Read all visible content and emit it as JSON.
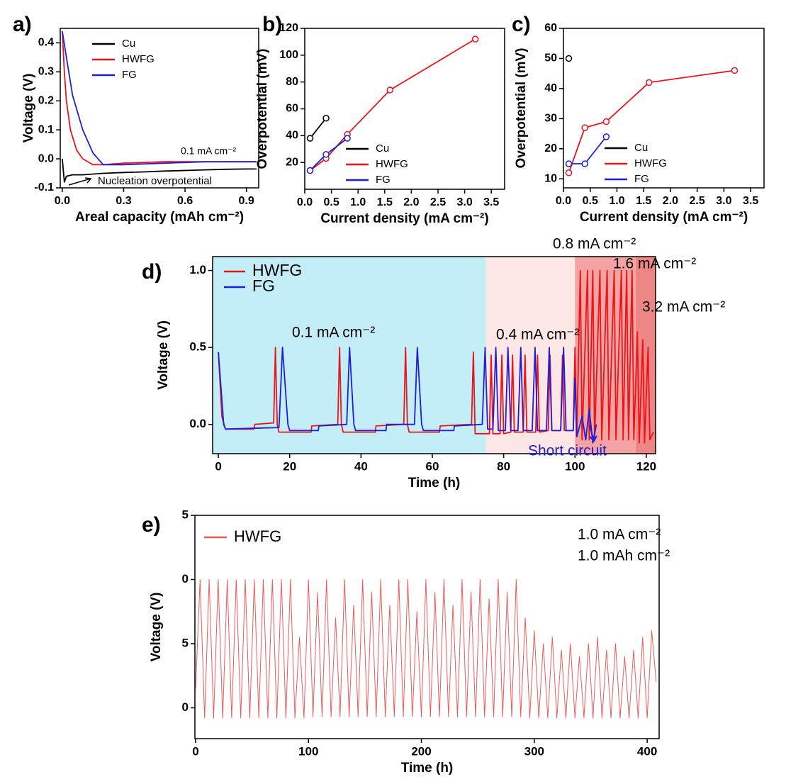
{
  "chart_data": [
    {
      "type": "line",
      "label": "a)",
      "xlabel": "Areal capacity (mAh cm⁻²)",
      "ylabel": "Voltage (V)",
      "xlim": [
        -0.01,
        0.96
      ],
      "ylim": [
        -0.1,
        0.45
      ],
      "xticks": [
        {
          "value": 0,
          "label": "0.0"
        },
        0.3,
        0.6,
        0.9
      ],
      "yticks": [
        -0.1,
        {
          "value": 0,
          "label": "0.0"
        },
        0.1,
        0.2,
        0.3,
        0.4
      ],
      "annotations": [
        "0.1 mA cm⁻²",
        "Nucleation overpotential"
      ],
      "series": [
        {
          "name": "Cu",
          "color": "#000000",
          "x": [
            0,
            0.01,
            0.02,
            0.05,
            0.1,
            0.2,
            0.3,
            0.4,
            0.5,
            0.6,
            0.7,
            0.8,
            0.9,
            0.95
          ],
          "values": [
            0.0,
            -0.08,
            -0.06,
            -0.055,
            -0.055,
            -0.05,
            -0.047,
            -0.045,
            -0.042,
            -0.04,
            -0.038,
            -0.036,
            -0.035,
            -0.035
          ]
        },
        {
          "name": "HWFG",
          "color": "#e8161b",
          "x": [
            0,
            0.01,
            0.02,
            0.04,
            0.07,
            0.1,
            0.15,
            0.2,
            0.3,
            0.5,
            0.7,
            0.95
          ],
          "values": [
            0.44,
            0.3,
            0.2,
            0.1,
            0.03,
            0.0,
            -0.02,
            -0.02,
            -0.015,
            -0.01,
            -0.01,
            -0.01
          ]
        },
        {
          "name": "FG",
          "color": "#1f1fd6",
          "x": [
            0,
            0.02,
            0.05,
            0.1,
            0.15,
            0.2,
            0.3,
            0.5,
            0.7,
            0.95
          ],
          "values": [
            0.44,
            0.35,
            0.22,
            0.1,
            0.02,
            -0.02,
            -0.02,
            -0.015,
            -0.01,
            -0.01
          ]
        }
      ]
    },
    {
      "type": "line",
      "label": "b)",
      "xlabel": "Current density (mA cm⁻²)",
      "ylabel": "Overpotential (mV)",
      "markers": true,
      "xlim": [
        0,
        3.75
      ],
      "ylim": [
        0,
        120
      ],
      "xticks": [
        {
          "value": 0,
          "label": "0.0"
        },
        0.5,
        {
          "value": 1,
          "label": "1.0"
        },
        1.5,
        {
          "value": 2,
          "label": "2.0"
        },
        2.5,
        {
          "value": 3,
          "label": "3.0"
        },
        3.5
      ],
      "yticks": [
        20,
        40,
        60,
        80,
        100,
        120
      ],
      "series": [
        {
          "name": "Cu",
          "color": "#000000",
          "x": [
            0.1,
            0.4
          ],
          "values": [
            38,
            53
          ]
        },
        {
          "name": "HWFG",
          "color": "#e8161b",
          "x": [
            0.1,
            0.4,
            0.8,
            1.6,
            3.2
          ],
          "values": [
            14,
            23,
            41,
            74,
            112
          ]
        },
        {
          "name": "FG",
          "color": "#1f1fd6",
          "x": [
            0.1,
            0.4,
            0.8
          ],
          "values": [
            14,
            26,
            38
          ]
        }
      ]
    },
    {
      "type": "line",
      "label": "c)",
      "xlabel": "Current density (mA cm⁻²)",
      "ylabel": "Overpotential (mV)",
      "markers": true,
      "xlim": [
        0,
        3.75
      ],
      "ylim": [
        7,
        60
      ],
      "xticks": [
        {
          "value": 0,
          "label": "0.0"
        },
        0.5,
        {
          "value": 1,
          "label": "1.0"
        },
        1.5,
        {
          "value": 2,
          "label": "2.0"
        },
        2.5,
        {
          "value": 3,
          "label": "3.0"
        },
        3.5
      ],
      "yticks": [
        10,
        20,
        30,
        40,
        50,
        60
      ],
      "series": [
        {
          "name": "Cu",
          "color": "#000000",
          "x": [
            0.1
          ],
          "values": [
            50
          ]
        },
        {
          "name": "HWFG",
          "color": "#e8161b",
          "x": [
            0.1,
            0.4,
            0.8,
            1.6,
            3.2
          ],
          "values": [
            12,
            27,
            29,
            42,
            46
          ]
        },
        {
          "name": "FG",
          "color": "#1f1fd6",
          "x": [
            0.1,
            0.4,
            0.8
          ],
          "values": [
            15,
            15,
            24
          ]
        }
      ]
    },
    {
      "type": "line",
      "label": "d)",
      "xlabel": "Time (h)",
      "ylabel": "Voltage (V)",
      "xlim": [
        -1.6,
        122.6
      ],
      "ylim": [
        -0.19,
        1.09
      ],
      "xticks": [
        0,
        20,
        40,
        60,
        80,
        100,
        120
      ],
      "yticks": [
        {
          "value": 0,
          "label": "0.0"
        },
        0.5,
        {
          "value": 1,
          "label": "1.0"
        }
      ],
      "regions": [
        {
          "x": [
            -1.6,
            75
          ],
          "color": "#c3eef8"
        },
        {
          "x": [
            75,
            100
          ],
          "color": "#fde6e6"
        },
        {
          "x": [
            100,
            117
          ],
          "color": "#f4a3a3"
        },
        {
          "x": [
            117,
            122.6
          ],
          "color": "#ee8686"
        }
      ],
      "annotations": [
        "0.1 mA cm⁻²",
        "0.4 mA cm⁻²",
        "0.8 mA cm⁻²",
        "1.6 mA cm⁻²",
        "3.2 mA cm⁻²",
        "Short circuit"
      ],
      "series": [
        {
          "name": "HWFG",
          "color": "#e8161b",
          "x": [
            0,
            1,
            2,
            10,
            10.2,
            15.5,
            16,
            16.5,
            17,
            26,
            26.2,
            33.5,
            34,
            34.5,
            35,
            44,
            44.2,
            52,
            52.5,
            53,
            53.5,
            62,
            62.2,
            71,
            71.5,
            72,
            76,
            76.5,
            77,
            79,
            79.5,
            80,
            82,
            82.5,
            83,
            85.5,
            86,
            86.5,
            89,
            89.5,
            90,
            92.5,
            93,
            93.5,
            96,
            96.5,
            97,
            99.5,
            100,
            100.5,
            101.5,
            102,
            103.5,
            104,
            105,
            105.5,
            107,
            107.5,
            109,
            109.5,
            111,
            111.5,
            113,
            113.5,
            114.5,
            115,
            116,
            116.5,
            117.5,
            118,
            119,
            119.5,
            120.5,
            121,
            122
          ],
          "values": [
            0.47,
            0.05,
            -0.03,
            -0.03,
            0.0,
            0.01,
            0.5,
            0.0,
            -0.05,
            -0.05,
            -0.01,
            0.0,
            0.5,
            0.0,
            -0.05,
            -0.05,
            -0.01,
            0.0,
            0.5,
            0.0,
            -0.05,
            -0.05,
            -0.01,
            0.0,
            0.47,
            -0.06,
            -0.06,
            0.45,
            -0.06,
            -0.06,
            0.45,
            -0.06,
            -0.05,
            0.45,
            -0.05,
            -0.05,
            0.45,
            -0.05,
            -0.05,
            0.45,
            -0.05,
            -0.04,
            0.45,
            -0.04,
            -0.04,
            0.45,
            -0.04,
            -0.04,
            0.5,
            -0.08,
            1.0,
            -0.1,
            1.0,
            -0.1,
            1.0,
            -0.1,
            1.0,
            -0.1,
            1.0,
            -0.1,
            1.0,
            -0.1,
            1.0,
            -0.1,
            1.0,
            -0.1,
            1.0,
            -0.1,
            0.6,
            -0.12,
            0.55,
            -0.12,
            0.5,
            -0.1,
            -0.05
          ]
        },
        {
          "name": "FG",
          "color": "#1f1fd6",
          "x": [
            0,
            1.5,
            2,
            17,
            18,
            19.5,
            20,
            28,
            28.2,
            36,
            36.8,
            38,
            38.5,
            47,
            47.2,
            55,
            55.8,
            57,
            57.5,
            66,
            66.2,
            74,
            74.8,
            75.5,
            77,
            77.8,
            78.5,
            80.5,
            81.2,
            82,
            84,
            84.8,
            85.5,
            88,
            88.8,
            89.5,
            92,
            92.8,
            93.5,
            96,
            96.8,
            97.5,
            99.5,
            100,
            100.5,
            102,
            103,
            104,
            105,
            106
          ],
          "values": [
            0.47,
            0.0,
            -0.03,
            -0.02,
            0.5,
            0.0,
            -0.04,
            -0.04,
            -0.01,
            0.0,
            0.5,
            0.0,
            -0.04,
            -0.04,
            0.0,
            0.0,
            0.5,
            0.0,
            -0.04,
            -0.04,
            -0.01,
            0.0,
            0.5,
            -0.03,
            -0.03,
            0.5,
            -0.04,
            -0.04,
            0.5,
            -0.04,
            -0.04,
            0.5,
            -0.04,
            -0.04,
            0.5,
            -0.04,
            -0.04,
            0.5,
            -0.04,
            -0.04,
            0.5,
            -0.04,
            -0.04,
            0.3,
            -0.08,
            0.05,
            -0.1,
            0.1,
            -0.12,
            0.0
          ]
        }
      ]
    },
    {
      "type": "line",
      "label": "e)",
      "xlabel": "Time (h)",
      "ylabel": "Voltage (V)",
      "xlim": [
        -0.6,
        410.6
      ],
      "ylim": [
        -2.4,
        15
      ],
      "xticks": [
        0,
        100,
        200,
        300,
        400
      ],
      "yticks": [
        0,
        5,
        {
          "value": 10,
          "label": "0"
        },
        {
          "value": 15,
          "label": "5"
        }
      ],
      "annotations": [
        "1.0 mA cm⁻²",
        "1.0 mAh cm⁻²"
      ],
      "series": [
        {
          "name": "HWFG",
          "color": "#f05a5a",
          "x": [
            0,
            4,
            8,
            12,
            16,
            20,
            24,
            28,
            32,
            36,
            40,
            44,
            48,
            52,
            56,
            60,
            64,
            68,
            72,
            76,
            80,
            84,
            88,
            92,
            96,
            100,
            104,
            108,
            112,
            116,
            120,
            124,
            128,
            132,
            136,
            140,
            144,
            148,
            152,
            156,
            160,
            164,
            168,
            172,
            176,
            180,
            184,
            188,
            192,
            196,
            200,
            204,
            208,
            212,
            216,
            220,
            224,
            228,
            232,
            236,
            240,
            244,
            248,
            252,
            256,
            260,
            264,
            268,
            272,
            276,
            280,
            284,
            288,
            292,
            296,
            300,
            304,
            308,
            312,
            316,
            320,
            324,
            328,
            332,
            336,
            340,
            344,
            348,
            352,
            356,
            360,
            364,
            368,
            372,
            376,
            380,
            384,
            388,
            392,
            396,
            400,
            404,
            408
          ],
          "values": [
            1.5,
            10,
            -0.8,
            10,
            -0.8,
            10,
            -0.8,
            10,
            -0.8,
            10,
            -0.8,
            10,
            -0.8,
            10,
            -0.8,
            10,
            -0.8,
            10,
            -0.8,
            10,
            -0.8,
            10,
            -0.8,
            5.5,
            -0.8,
            10,
            -0.7,
            9,
            -0.7,
            10,
            -0.7,
            7,
            -0.7,
            10,
            -0.7,
            8,
            -0.7,
            10,
            -0.7,
            9,
            -0.7,
            10,
            -0.7,
            8,
            -0.7,
            10,
            -0.7,
            10,
            -0.7,
            7.5,
            -0.7,
            10,
            -0.7,
            9,
            -0.7,
            10,
            -0.7,
            8,
            -0.7,
            10,
            -0.7,
            9,
            -0.7,
            10,
            -0.7,
            8.5,
            -0.7,
            10,
            -0.7,
            9,
            -0.7,
            10,
            -0.7,
            7,
            -0.8,
            6,
            -0.8,
            5,
            -0.8,
            5.5,
            -0.8,
            4.5,
            -0.8,
            5,
            -0.8,
            4,
            -0.8,
            5,
            -0.8,
            5.5,
            -0.8,
            4.5,
            -0.8,
            5,
            -0.8,
            4,
            -0.8,
            4.5,
            -0.8,
            5.5,
            -0.8,
            6,
            2
          ]
        }
      ]
    }
  ]
}
